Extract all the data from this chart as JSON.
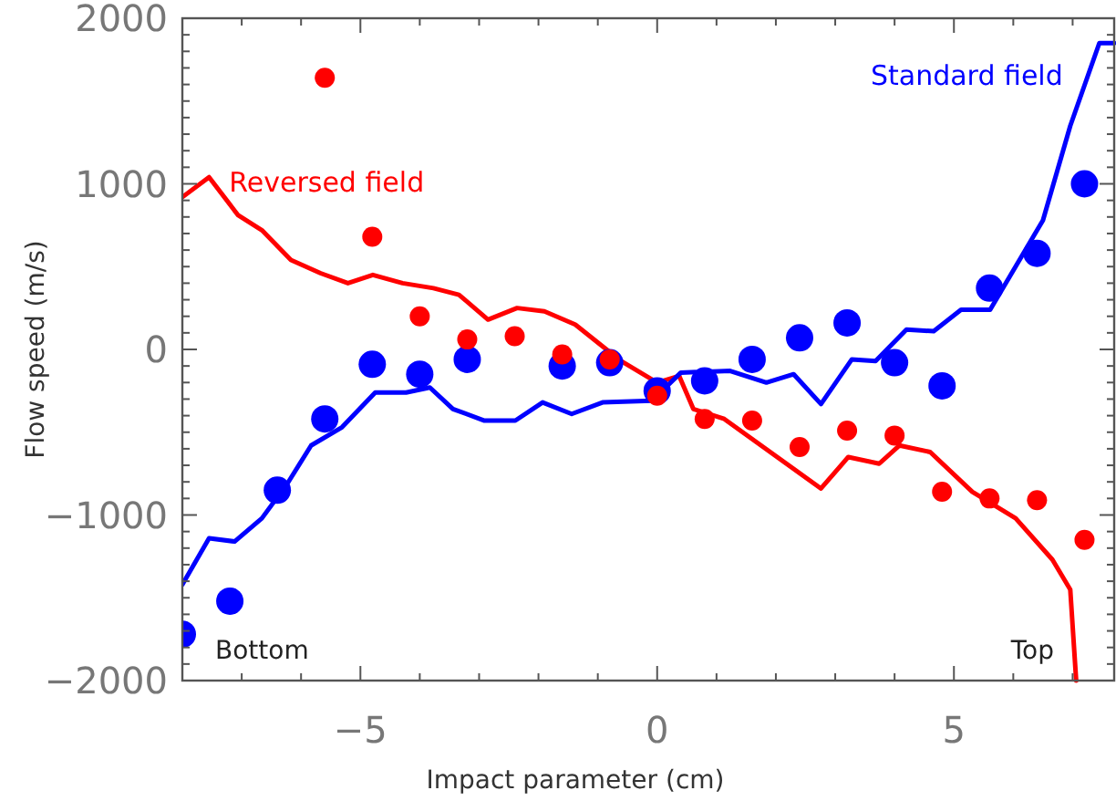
{
  "chart_data": {
    "type": "line",
    "xlabel": "Impact parameter (cm)",
    "ylabel": "Flow speed (m/s)",
    "xlim": [
      -8,
      7.7
    ],
    "ylim": [
      -2000,
      2000
    ],
    "xticks": [
      {
        "value": -7,
        "label": null
      },
      {
        "value": -6,
        "label": null
      },
      {
        "value": -5,
        "label": "−5"
      },
      {
        "value": -4,
        "label": null
      },
      {
        "value": -3,
        "label": null
      },
      {
        "value": -2,
        "label": null
      },
      {
        "value": -1,
        "label": null
      },
      0,
      {
        "value": 1,
        "label": null
      },
      {
        "value": 2,
        "label": null
      },
      {
        "value": 3,
        "label": null
      },
      {
        "value": 4,
        "label": null
      },
      5,
      {
        "value": 6,
        "label": null
      },
      {
        "value": 7,
        "label": null
      }
    ],
    "yticks": [
      {
        "value": -2000,
        "label": "−2000"
      },
      {
        "value": -1900,
        "label": null
      },
      {
        "value": -1800,
        "label": null
      },
      {
        "value": -1700,
        "label": null
      },
      {
        "value": -1600,
        "label": null
      },
      {
        "value": -1500,
        "label": null
      },
      {
        "value": -1400,
        "label": null
      },
      {
        "value": -1300,
        "label": null
      },
      {
        "value": -1200,
        "label": null
      },
      {
        "value": -1100,
        "label": null
      },
      {
        "value": -1000,
        "label": "−1000"
      },
      {
        "value": -900,
        "label": null
      },
      {
        "value": -800,
        "label": null
      },
      {
        "value": -700,
        "label": null
      },
      {
        "value": -600,
        "label": null
      },
      {
        "value": -500,
        "label": null
      },
      {
        "value": -400,
        "label": null
      },
      {
        "value": -300,
        "label": null
      },
      {
        "value": -200,
        "label": null
      },
      {
        "value": -100,
        "label": null
      },
      0,
      {
        "value": 100,
        "label": null
      },
      {
        "value": 200,
        "label": null
      },
      {
        "value": 300,
        "label": null
      },
      {
        "value": 400,
        "label": null
      },
      {
        "value": 500,
        "label": null
      },
      {
        "value": 600,
        "label": null
      },
      {
        "value": 700,
        "label": null
      },
      {
        "value": 800,
        "label": null
      },
      {
        "value": 900,
        "label": null
      },
      1000,
      {
        "value": 1100,
        "label": null
      },
      {
        "value": 1200,
        "label": null
      },
      {
        "value": 1300,
        "label": null
      },
      {
        "value": 1400,
        "label": null
      },
      {
        "value": 1500,
        "label": null
      },
      {
        "value": 1600,
        "label": null
      },
      {
        "value": 1700,
        "label": null
      },
      {
        "value": 1800,
        "label": null
      },
      {
        "value": 1900,
        "label": null
      },
      2000
    ],
    "x": [
      -8,
      -7.2,
      -6.4,
      -5.6,
      -4.8,
      -4,
      -3.2,
      -2.4,
      -1.6,
      -0.8,
      0,
      0.8,
      1.6,
      2.4,
      3.2,
      4,
      4.8,
      5.6,
      6.4,
      7.2
    ],
    "annotations": [
      "Bottom",
      "Top"
    ],
    "series": [
      {
        "name": "Reversed field",
        "color": "#ff0000",
        "x": [
          -8,
          -7.55,
          -7.06,
          -6.66,
          -6.17,
          -5.67,
          -5.21,
          -4.79,
          -4.29,
          -3.77,
          -3.34,
          -2.85,
          -2.36,
          -1.9,
          -1.38,
          -0.61,
          0,
          0.37,
          0.61,
          1.13,
          1.75,
          2.76,
          3.22,
          3.74,
          4.08,
          4.6,
          5.31,
          6.04,
          6.66,
          6.96,
          7.06
        ],
        "values": [
          920,
          1040,
          810,
          720,
          540,
          460,
          400,
          450,
          400,
          370,
          330,
          180,
          250,
          230,
          150,
          -70,
          -200,
          -160,
          -360,
          -420,
          -580,
          -840,
          -650,
          -690,
          -580,
          -620,
          -860,
          -1020,
          -1270,
          -1450,
          -2000
        ]
      },
      {
        "name": "Standard field",
        "color": "#0000ff",
        "x": [
          -8,
          -7.55,
          -7.12,
          -6.66,
          -6.23,
          -5.83,
          -5.31,
          -4.75,
          -4.23,
          -3.83,
          -3.44,
          -2.91,
          -2.39,
          -1.93,
          -1.44,
          -0.92,
          -0.09,
          0.4,
          1.23,
          1.84,
          2.3,
          2.76,
          3.28,
          3.68,
          4.2,
          4.66,
          5.12,
          5.61,
          6.5,
          6.96,
          7.45,
          7.7
        ],
        "values": [
          -1420,
          -1140,
          -1160,
          -1020,
          -810,
          -580,
          -470,
          -260,
          -260,
          -230,
          -360,
          -430,
          -430,
          -320,
          -390,
          -320,
          -310,
          -140,
          -130,
          -200,
          -150,
          -330,
          -60,
          -70,
          120,
          110,
          240,
          240,
          780,
          1350,
          1850,
          1850
        ]
      },
      {
        "type": "scatter",
        "marker": "circle",
        "color": "#0000ff",
        "values": [
          -1720,
          -1520,
          -850,
          -420,
          -90,
          -150,
          -60,
          null,
          -100,
          -80,
          -250,
          -190,
          -60,
          70,
          160,
          -80,
          -220,
          370,
          580,
          1000
        ]
      },
      {
        "type": "scatter",
        "marker": "circle",
        "color": "#ff0000",
        "values": [
          null,
          null,
          null,
          1640,
          680,
          200,
          60,
          80,
          -30,
          -60,
          -280,
          -420,
          -430,
          -590,
          -490,
          -520,
          -860,
          -900,
          -910,
          -1150
        ]
      }
    ]
  }
}
